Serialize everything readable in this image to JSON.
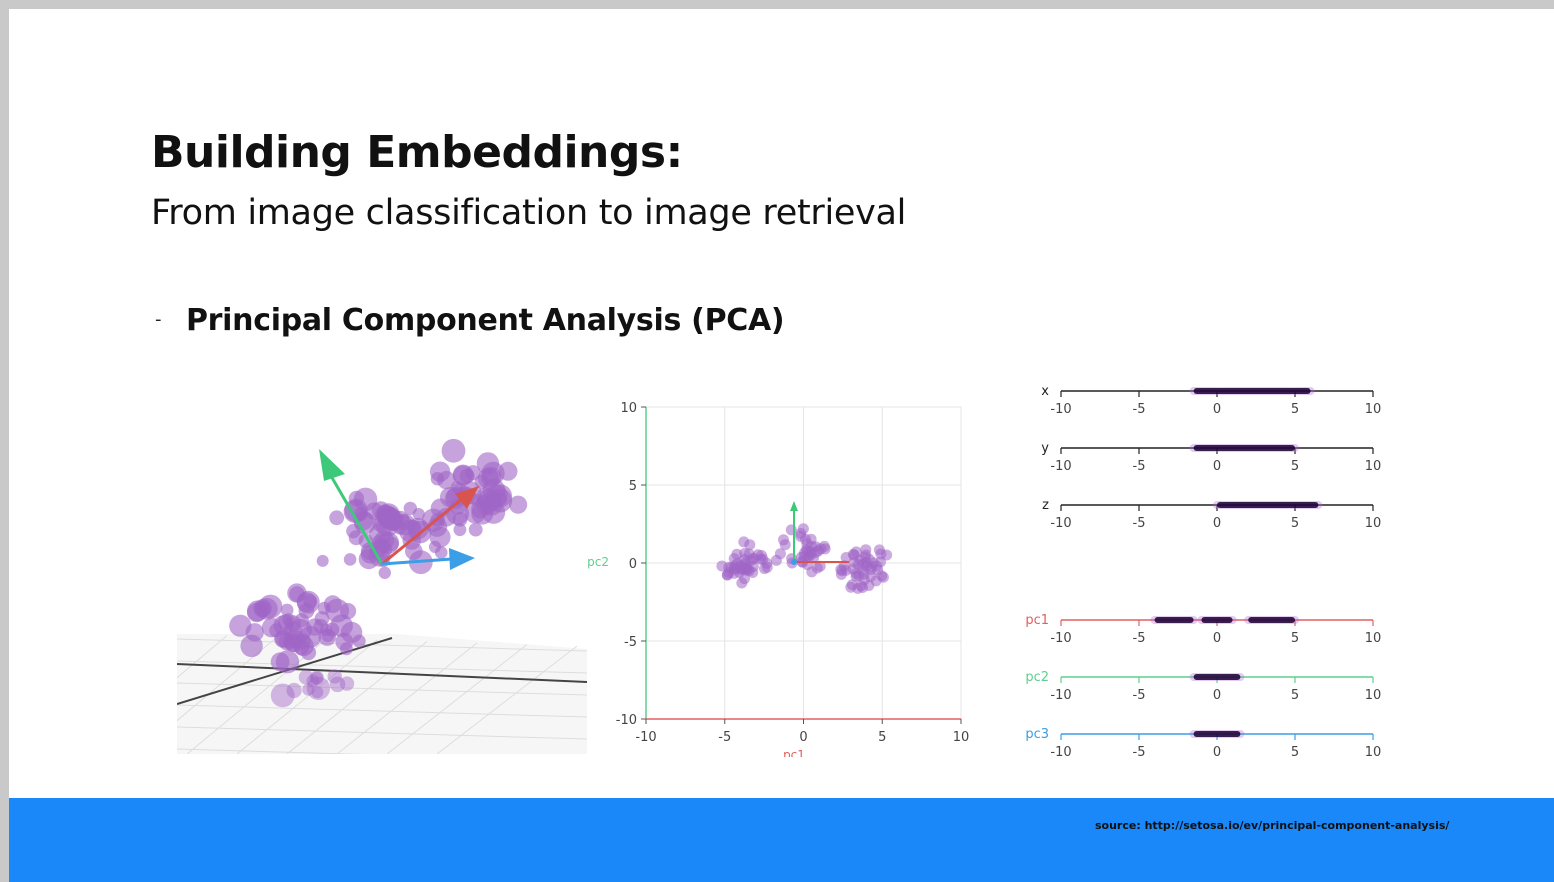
{
  "slide": {
    "title": "Building Embeddings:",
    "subtitle": "From image classification to image retrieval",
    "bullet_marker": "-",
    "bullet": "Principal Component Analysis (PCA)",
    "source": "source: http://setosa.io/ev/principal-component-analysis/"
  },
  "colors": {
    "footer": "#1a88f9",
    "points": "#a066c6",
    "pc1_axis": "#e06060",
    "pc2_axis": "#5fcf8f",
    "pc3_axis": "#3b9ee6",
    "density": "#1a0033"
  },
  "chart_data": [
    {
      "type": "scatter",
      "description_role": "3d-point-cloud",
      "title": "",
      "arrows": [
        "green",
        "red",
        "blue"
      ]
    },
    {
      "type": "scatter",
      "title": "",
      "xlabel": "pc1",
      "ylabel": "pc2",
      "xlim": [
        -10,
        10
      ],
      "ylim": [
        -10,
        10
      ],
      "xticks": [
        "-10",
        "-5",
        "0",
        "5",
        "10"
      ],
      "yticks": [
        "10",
        "5",
        "0",
        "-5",
        "-10"
      ],
      "grid": true
    },
    {
      "type": "strip",
      "xlim": [
        -10,
        10
      ],
      "ticks": [
        "-10",
        "-5",
        "0",
        "5",
        "10"
      ],
      "rows": [
        {
          "label": "x",
          "color": "#222222",
          "segments": [
            [
              -1.5,
              6
            ]
          ]
        },
        {
          "label": "y",
          "color": "#222222",
          "segments": [
            [
              -1.5,
              5
            ]
          ]
        },
        {
          "label": "z",
          "color": "#222222",
          "segments": [
            [
              0,
              6.5
            ]
          ]
        },
        {
          "label": "pc1",
          "color": "#e06060",
          "segments": [
            [
              -4,
              -1.5
            ],
            [
              -1,
              1
            ],
            [
              2,
              5
            ]
          ]
        },
        {
          "label": "pc2",
          "color": "#5fcf8f",
          "segments": [
            [
              -1.5,
              1.5
            ]
          ]
        },
        {
          "label": "pc3",
          "color": "#3b9ee6",
          "segments": [
            [
              -1.5,
              1.5
            ]
          ]
        }
      ]
    }
  ]
}
